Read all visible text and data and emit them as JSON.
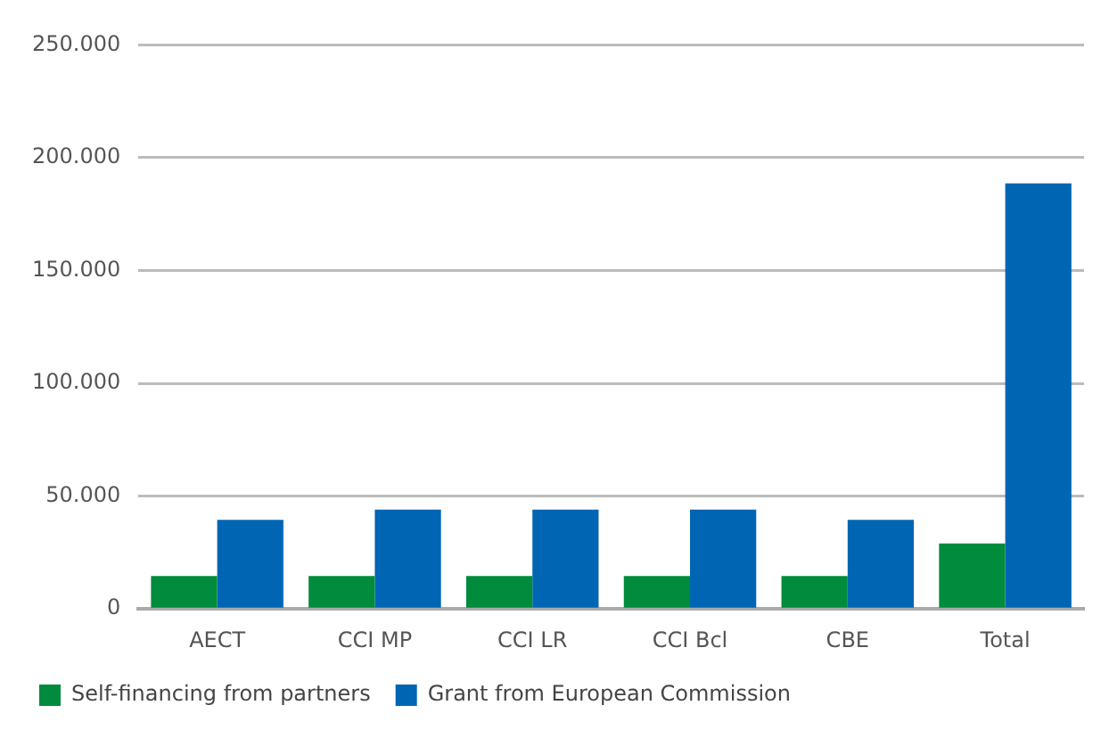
{
  "chart_data": {
    "type": "bar",
    "categories": [
      "AECT",
      "CCI MP",
      "CCI LR",
      "CCI Bcl",
      "CBE",
      "Total"
    ],
    "series": [
      {
        "name": "Self-financing from partners",
        "color": "#008b3d",
        "values": [
          14600,
          14600,
          14600,
          14600,
          14600,
          29000
        ]
      },
      {
        "name": "Grant from European Commission",
        "color": "#0066b3",
        "values": [
          39500,
          44000,
          44000,
          44000,
          39500,
          188600
        ]
      }
    ],
    "ylim": [
      0,
      250000
    ],
    "yticks": [
      {
        "value": 0,
        "label": "0"
      },
      {
        "value": 50000,
        "label": "50.000"
      },
      {
        "value": 100000,
        "label": "100.000"
      },
      {
        "value": 150000,
        "label": "150.000"
      },
      {
        "value": 200000,
        "label": "200.000"
      },
      {
        "value": 250000,
        "label": "250.000"
      }
    ],
    "grid": "y",
    "legend": "bottom left"
  }
}
